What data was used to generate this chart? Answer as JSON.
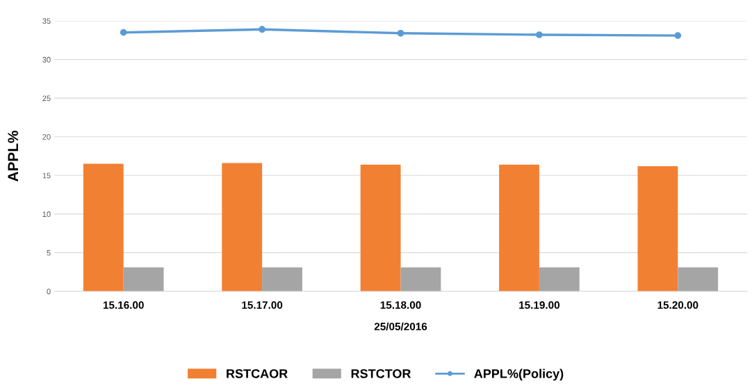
{
  "chart_data": {
    "type": "bar",
    "xlabel": "25/05/2016",
    "ylabel": "APPL%",
    "categories": [
      "15.16.00",
      "15.17.00",
      "15.18.00",
      "15.19.00",
      "15.20.00"
    ],
    "series": [
      {
        "name": "RSTCAOR",
        "color": "#f28033",
        "values": [
          16.5,
          16.6,
          16.4,
          16.4,
          16.2
        ]
      },
      {
        "name": "RSTCTOR",
        "color": "#a5a5a5",
        "values": [
          3.1,
          3.1,
          3.1,
          3.1,
          3.1
        ]
      },
      {
        "name": "APPL%(Policy)",
        "type": "line",
        "color": "#5b9bd5",
        "marker": "circle",
        "values": [
          33.5,
          33.9,
          33.4,
          33.2,
          33.1
        ]
      }
    ],
    "ylim": [
      0,
      35
    ],
    "yticks": [
      0,
      5,
      10,
      15,
      20,
      25,
      30,
      35
    ],
    "grid": "y",
    "legend": "bottom"
  }
}
